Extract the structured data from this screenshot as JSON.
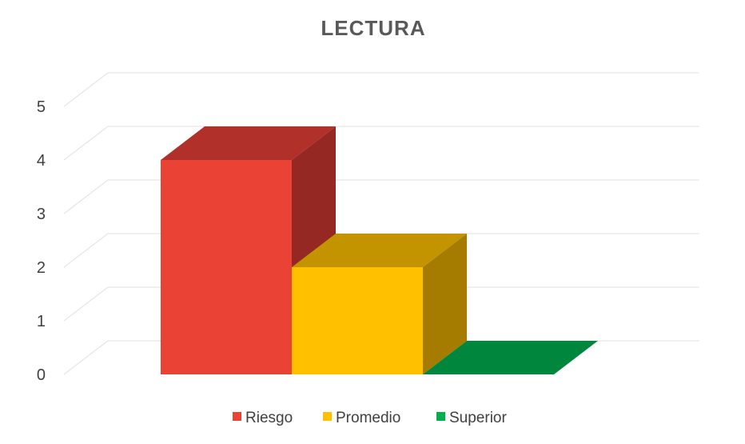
{
  "chart_data": {
    "type": "bar",
    "title": "LECTURA",
    "categories": [
      "Riesgo",
      "Promedio",
      "Superior"
    ],
    "values": [
      4,
      2,
      0
    ],
    "ylim": [
      0,
      5
    ],
    "yticks": [
      0,
      1,
      2,
      3,
      4,
      5
    ],
    "grid": true,
    "legend_position": "bottom",
    "three_d": true,
    "series": [
      {
        "name": "Riesgo",
        "value": 4,
        "colors": {
          "front": "#EA4335",
          "top": "#B1302A",
          "side": "#952822"
        }
      },
      {
        "name": "Promedio",
        "value": 2,
        "colors": {
          "front": "#FFC000",
          "top": "#C49300",
          "side": "#A67C00"
        }
      },
      {
        "name": "Superior",
        "value": 0,
        "colors": {
          "front": "#00B050",
          "top": "#00873D",
          "side": "#007033"
        }
      }
    ]
  }
}
